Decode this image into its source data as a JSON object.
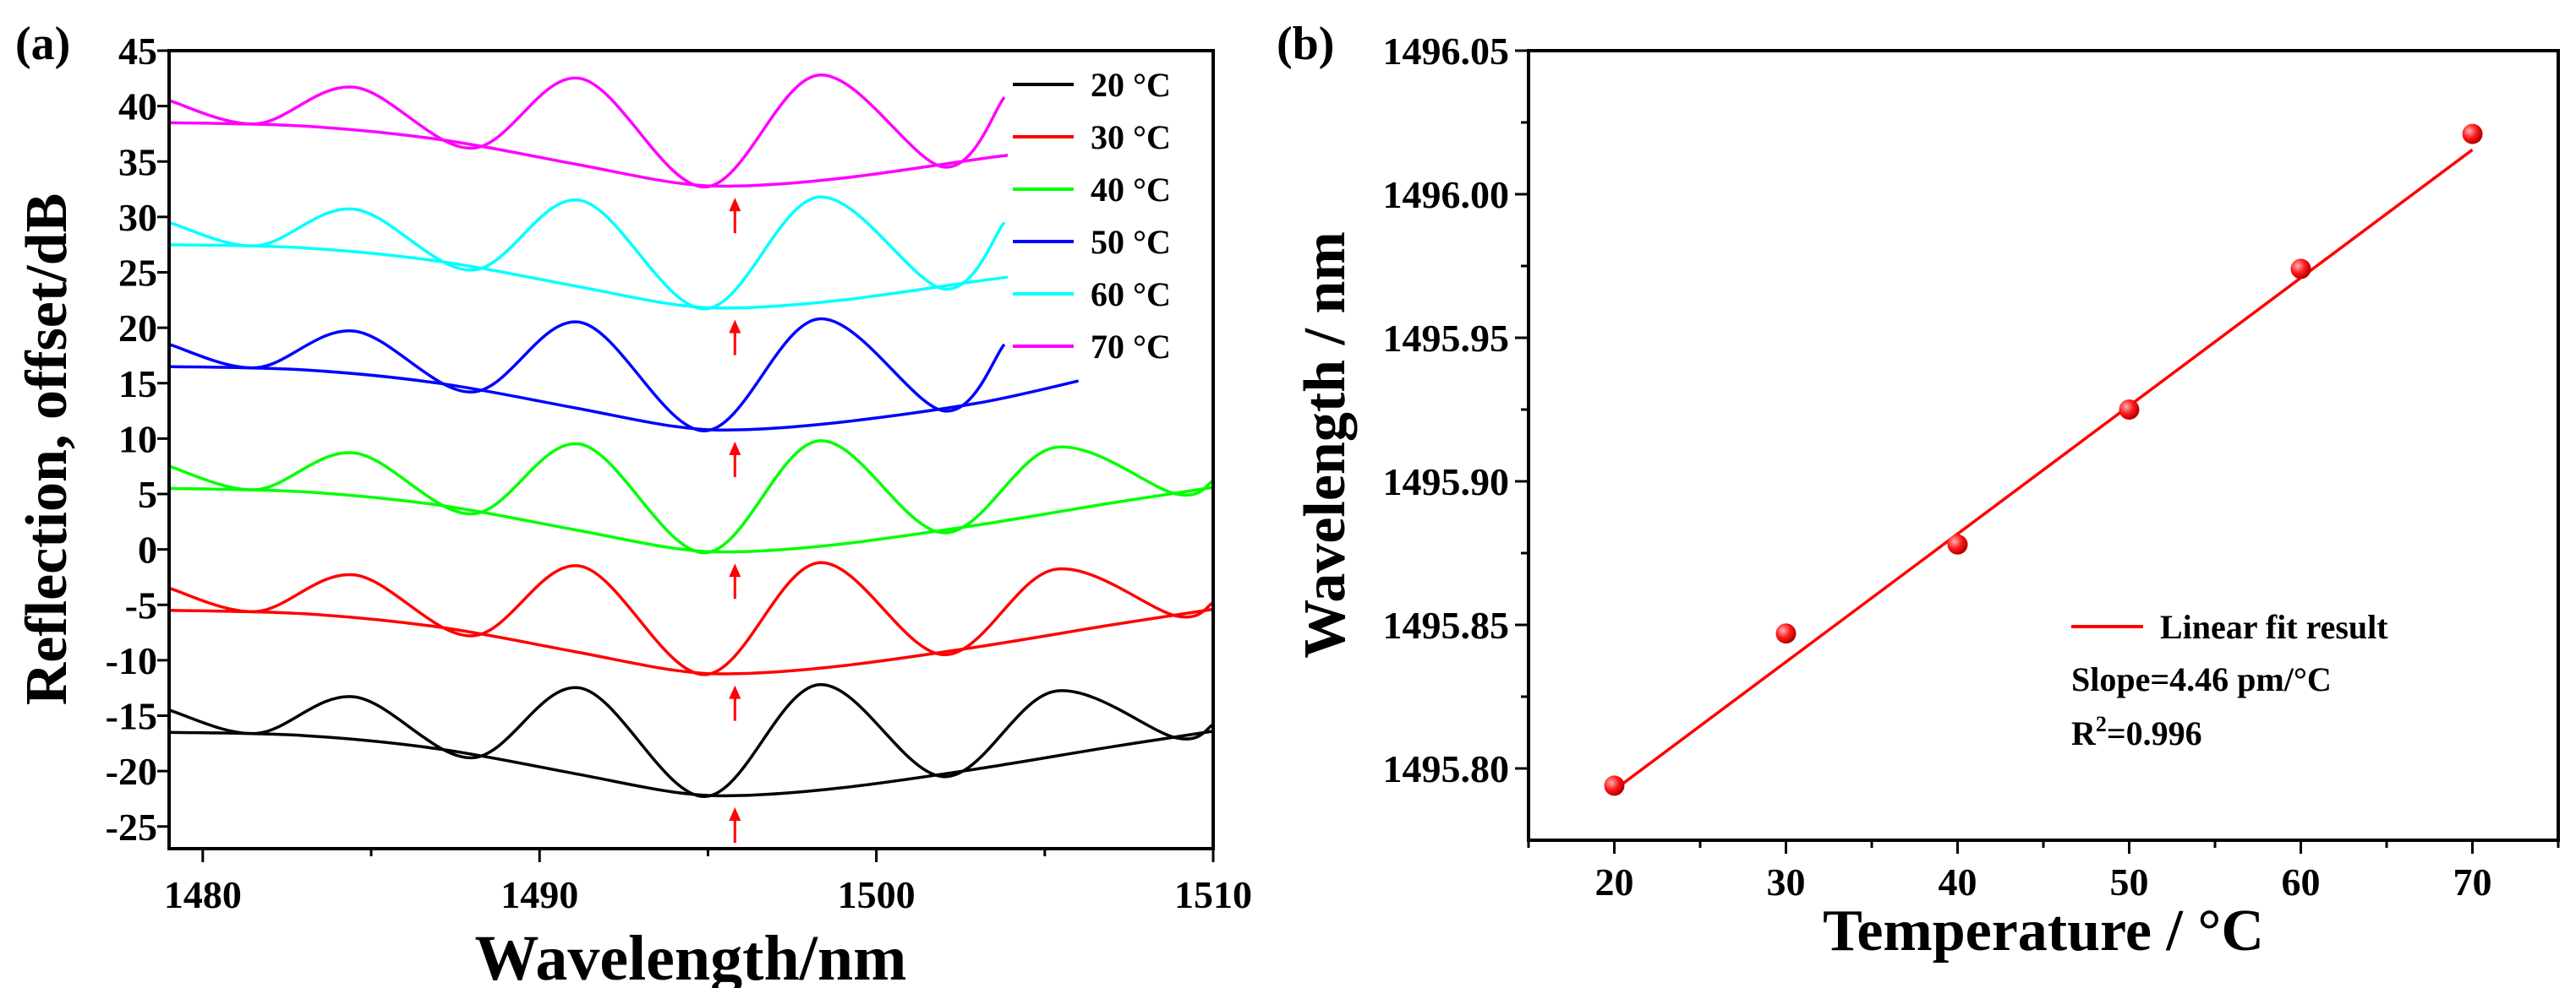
{
  "chart_data": [
    {
      "panel_label": "(a)",
      "type": "line",
      "xlabel": "Wavelength/nm",
      "ylabel": "Reflection, offset/dB",
      "xlim": [
        1479,
        1510
      ],
      "ylim": [
        -27,
        45
      ],
      "xticks": [
        1480,
        1490,
        1500,
        1510
      ],
      "yticks": [
        -25,
        -20,
        -15,
        -10,
        -5,
        0,
        5,
        10,
        15,
        20,
        25,
        30,
        35,
        40,
        45
      ],
      "legend": {
        "position": "top-right",
        "entries": [
          {
            "label": "20 °C",
            "color": "#000000"
          },
          {
            "label": "30 °C",
            "color": "#ff0000"
          },
          {
            "label": "40 °C",
            "color": "#00ff00"
          },
          {
            "label": "50 °C",
            "color": "#0000ff"
          },
          {
            "label": "60 °C",
            "color": "#00ffff"
          },
          {
            "label": "70 °C",
            "color": "#ff00ff"
          }
        ]
      },
      "series": [
        {
          "name": "20 °C",
          "color": "#000000",
          "offset_db": 0,
          "fringe_points": [
            [
              1479,
              -14.5
            ],
            [
              1481.6,
              -16.6
            ],
            [
              1484.5,
              -13.3
            ],
            [
              1488,
              -18.8
            ],
            [
              1491.2,
              -12.5
            ],
            [
              1494.9,
              -22.3
            ],
            [
              1498.3,
              -12.2
            ],
            [
              1502,
              -20.5
            ],
            [
              1505.3,
              -12.8
            ],
            [
              1508.9,
              -17.0
            ],
            [
              1510,
              -15.8
            ]
          ],
          "envelope_points": [
            [
              1479,
              -16.5
            ],
            [
              1483,
              -16.8
            ],
            [
              1487,
              -18.0
            ],
            [
              1491,
              -20.2
            ],
            [
              1494,
              -21.9
            ],
            [
              1496,
              -22.2
            ],
            [
              1499,
              -21.5
            ],
            [
              1503,
              -19.8
            ],
            [
              1507,
              -17.8
            ],
            [
              1510,
              -16.4
            ]
          ],
          "dip_arrow_wavelength": 1495.8
        },
        {
          "name": "30 °C",
          "color": "#ff0000",
          "offset_db": 11,
          "fringe_points": [
            [
              1479,
              -3.5
            ],
            [
              1481.6,
              -5.6
            ],
            [
              1484.5,
              -2.3
            ],
            [
              1488,
              -7.8
            ],
            [
              1491.2,
              -1.5
            ],
            [
              1494.9,
              -11.3
            ],
            [
              1498.3,
              -1.2
            ],
            [
              1502,
              -9.5
            ],
            [
              1505.3,
              -1.8
            ],
            [
              1508.9,
              -6.0
            ],
            [
              1510,
              -4.8
            ]
          ],
          "envelope_points": [
            [
              1479,
              -5.5
            ],
            [
              1483,
              -5.8
            ],
            [
              1487,
              -7.0
            ],
            [
              1491,
              -9.2
            ],
            [
              1494,
              -10.9
            ],
            [
              1496,
              -11.2
            ],
            [
              1499,
              -10.5
            ],
            [
              1503,
              -8.8
            ],
            [
              1507,
              -6.8
            ],
            [
              1510,
              -5.4
            ]
          ],
          "dip_arrow_wavelength": 1495.8
        },
        {
          "name": "40 °C",
          "color": "#00ff00",
          "offset_db": 22,
          "fringe_points": [
            [
              1479,
              7.5
            ],
            [
              1481.6,
              5.4
            ],
            [
              1484.5,
              8.7
            ],
            [
              1488,
              3.2
            ],
            [
              1491.2,
              9.5
            ],
            [
              1494.9,
              -0.3
            ],
            [
              1498.3,
              9.8
            ],
            [
              1502,
              1.5
            ],
            [
              1505.3,
              9.2
            ],
            [
              1508.9,
              5.0
            ],
            [
              1510,
              6.2
            ]
          ],
          "envelope_points": [
            [
              1479,
              5.5
            ],
            [
              1483,
              5.2
            ],
            [
              1487,
              4.0
            ],
            [
              1491,
              1.8
            ],
            [
              1494,
              0.1
            ],
            [
              1496,
              -0.2
            ],
            [
              1499,
              0.5
            ],
            [
              1503,
              2.2
            ],
            [
              1507,
              4.2
            ],
            [
              1510,
              5.6
            ]
          ],
          "dip_arrow_wavelength": 1495.8
        },
        {
          "name": "50 °C",
          "color": "#0000ff",
          "offset_db": 33,
          "fringe_points": [
            [
              1479,
              18.5
            ],
            [
              1481.6,
              16.4
            ],
            [
              1484.5,
              19.7
            ],
            [
              1488,
              14.2
            ],
            [
              1491.2,
              20.5
            ],
            [
              1494.9,
              10.7
            ],
            [
              1498.3,
              20.8
            ],
            [
              1502,
              12.5
            ],
            [
              1503.8,
              18.5
            ]
          ],
          "envelope_points": [
            [
              1479,
              16.5
            ],
            [
              1483,
              16.2
            ],
            [
              1487,
              15.0
            ],
            [
              1491,
              12.8
            ],
            [
              1494,
              11.1
            ],
            [
              1496,
              10.8
            ],
            [
              1499,
              11.5
            ],
            [
              1503,
              13.2
            ],
            [
              1506,
              15.2
            ]
          ],
          "dip_arrow_wavelength": 1495.8
        },
        {
          "name": "60 °C",
          "color": "#00ffff",
          "offset_db": 44,
          "fringe_points": [
            [
              1479,
              29.5
            ],
            [
              1481.6,
              27.4
            ],
            [
              1484.5,
              30.7
            ],
            [
              1488,
              25.2
            ],
            [
              1491.2,
              31.5
            ],
            [
              1494.9,
              21.7
            ],
            [
              1498.3,
              31.8
            ],
            [
              1502,
              23.5
            ],
            [
              1503.8,
              29.5
            ]
          ],
          "envelope_points": [
            [
              1479,
              27.5
            ],
            [
              1483,
              27.2
            ],
            [
              1487,
              26.0
            ],
            [
              1491,
              23.8
            ],
            [
              1494,
              22.1
            ],
            [
              1496,
              21.8
            ],
            [
              1499,
              22.5
            ],
            [
              1503,
              24.2
            ],
            [
              1504,
              24.6
            ]
          ],
          "dip_arrow_wavelength": 1495.8
        },
        {
          "name": "70 °C",
          "color": "#ff00ff",
          "offset_db": 55,
          "fringe_points": [
            [
              1479,
              40.5
            ],
            [
              1481.6,
              38.4
            ],
            [
              1484.5,
              41.7
            ],
            [
              1488,
              36.2
            ],
            [
              1491.2,
              42.5
            ],
            [
              1494.9,
              32.7
            ],
            [
              1498.3,
              42.8
            ],
            [
              1502,
              34.5
            ],
            [
              1503.8,
              40.8
            ]
          ],
          "envelope_points": [
            [
              1479,
              38.5
            ],
            [
              1483,
              38.2
            ],
            [
              1487,
              37.0
            ],
            [
              1491,
              34.8
            ],
            [
              1494,
              33.1
            ],
            [
              1496,
              32.8
            ],
            [
              1499,
              33.5
            ],
            [
              1503,
              35.2
            ],
            [
              1504,
              35.6
            ]
          ],
          "dip_arrow_wavelength": 1495.8
        }
      ]
    },
    {
      "panel_label": "(b)",
      "type": "scatter",
      "xlabel": "Temperature / °C",
      "ylabel": "Wavelength / nm",
      "xlim": [
        15,
        75
      ],
      "ylim": [
        1495.775,
        1496.05
      ],
      "xticks": [
        20,
        30,
        40,
        50,
        60,
        70
      ],
      "yticks": [
        1495.8,
        1495.85,
        1495.9,
        1495.95,
        1496.0,
        1496.05
      ],
      "ytick_labels": [
        "1495.80",
        "1495.85",
        "1495.90",
        "1495.95",
        "1496.00",
        "1496.05"
      ],
      "x": [
        20,
        30,
        40,
        50,
        60,
        70
      ],
      "y": [
        1495.794,
        1495.847,
        1495.878,
        1495.925,
        1495.974,
        1496.021
      ],
      "point_color": "#ff0000",
      "fit": {
        "label": "Linear fit result",
        "slope_pm_per_c": 4.46,
        "x_range": [
          20,
          70
        ],
        "y_at_start": 1495.7925,
        "y_at_end": 1496.0155,
        "color": "#ff0000"
      },
      "annotations": {
        "slope": "Slope=4.46 pm/°C",
        "r2_prefix": "R",
        "r2_sup": "2",
        "r2_suffix": "=0.996"
      }
    }
  ]
}
